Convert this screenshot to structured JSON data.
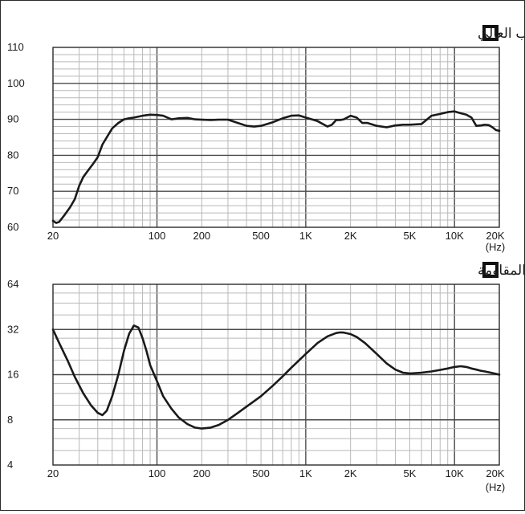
{
  "chart_data": [
    {
      "type": "line",
      "title": "أمام مكبر الصوت للملعب العالي",
      "x_scale": "log",
      "xlim": [
        20,
        20000
      ],
      "ylim": [
        60,
        110
      ],
      "xticks": [
        20,
        100,
        200,
        500,
        1000,
        2000,
        5000,
        10000,
        20000
      ],
      "xtick_labels": [
        "20",
        "100",
        "200",
        "500",
        "1K",
        "2K",
        "5K",
        "10K",
        "20K"
      ],
      "yticks": [
        60,
        70,
        80,
        90,
        100,
        110
      ],
      "ytick_labels": [
        "60",
        "70",
        "80",
        "90",
        "100",
        "110"
      ],
      "unit_label": "(Hz)",
      "grid": true,
      "x": [
        20,
        21,
        22,
        24,
        26,
        28,
        30,
        32,
        34,
        37,
        40,
        43,
        46,
        50,
        55,
        60,
        65,
        70,
        80,
        90,
        100,
        110,
        125,
        140,
        160,
        180,
        200,
        230,
        260,
        300,
        350,
        400,
        450,
        500,
        600,
        700,
        800,
        900,
        1000,
        1100,
        1200,
        1400,
        1500,
        1600,
        1700,
        1800,
        2000,
        2200,
        2400,
        2600,
        3000,
        3500,
        4000,
        4500,
        5000,
        6000,
        7000,
        8000,
        9000,
        10000,
        11000,
        12000,
        13000,
        14000,
        15000,
        16000,
        17000,
        18000,
        19000,
        20000
      ],
      "values": [
        61.8,
        61.2,
        61.5,
        63.5,
        65.5,
        67.8,
        71.5,
        74.0,
        75.5,
        77.5,
        79.5,
        83.0,
        85.0,
        87.5,
        89.0,
        90.0,
        90.3,
        90.5,
        91.0,
        91.3,
        91.2,
        91.0,
        90.0,
        90.3,
        90.4,
        90.0,
        89.9,
        89.8,
        89.9,
        89.9,
        89.0,
        88.2,
        88.0,
        88.2,
        89.2,
        90.3,
        91.0,
        91.1,
        90.5,
        90.0,
        89.5,
        88.0,
        88.5,
        89.8,
        89.8,
        90.0,
        91.0,
        90.5,
        89.0,
        89.0,
        88.2,
        87.8,
        88.3,
        88.5,
        88.5,
        88.7,
        91.0,
        91.5,
        92.0,
        92.2,
        91.7,
        91.3,
        90.5,
        88.2,
        88.3,
        88.5,
        88.4,
        87.8,
        87.0,
        86.8
      ]
    },
    {
      "type": "line",
      "title": "خصائص المقاومة",
      "x_scale": "log",
      "y_scale": "log",
      "xlim": [
        20,
        20000
      ],
      "ylim": [
        4,
        64
      ],
      "xticks": [
        20,
        100,
        200,
        500,
        1000,
        2000,
        5000,
        10000,
        20000
      ],
      "xtick_labels": [
        "20",
        "100",
        "200",
        "500",
        "1K",
        "2K",
        "5K",
        "10K",
        "20K"
      ],
      "yticks": [
        4,
        8,
        16,
        32,
        64
      ],
      "ytick_labels": [
        "4",
        "8",
        "16",
        "32",
        "64"
      ],
      "unit_label": "(Hz)",
      "grid": true,
      "x": [
        20,
        22,
        25,
        28,
        32,
        36,
        40,
        43,
        46,
        50,
        55,
        60,
        65,
        70,
        75,
        80,
        85,
        90,
        100,
        110,
        125,
        140,
        160,
        180,
        200,
        230,
        260,
        300,
        350,
        400,
        500,
        600,
        700,
        800,
        1000,
        1200,
        1400,
        1600,
        1700,
        1800,
        2000,
        2200,
        2500,
        3000,
        3500,
        4000,
        4500,
        5000,
        6000,
        7000,
        8000,
        9000,
        10000,
        11000,
        12000,
        13000,
        14000,
        15000,
        16000,
        17000,
        18000,
        19000,
        20000
      ],
      "values": [
        32,
        26,
        20,
        15.5,
        12,
        10,
        8.9,
        8.6,
        9.2,
        11.5,
        16,
        23,
        30,
        34,
        33,
        28,
        23,
        18.5,
        14.5,
        11.5,
        9.5,
        8.3,
        7.5,
        7.1,
        7.0,
        7.1,
        7.4,
        8.0,
        8.9,
        9.8,
        11.5,
        13.5,
        15.6,
        17.8,
        22,
        26,
        28.8,
        30.3,
        30.6,
        30.5,
        29.8,
        28.5,
        26,
        22,
        19,
        17.3,
        16.5,
        16.3,
        16.5,
        16.8,
        17.2,
        17.6,
        18.0,
        18.2,
        18.0,
        17.6,
        17.3,
        17.0,
        16.8,
        16.6,
        16.4,
        16.2,
        16.0
      ]
    }
  ]
}
